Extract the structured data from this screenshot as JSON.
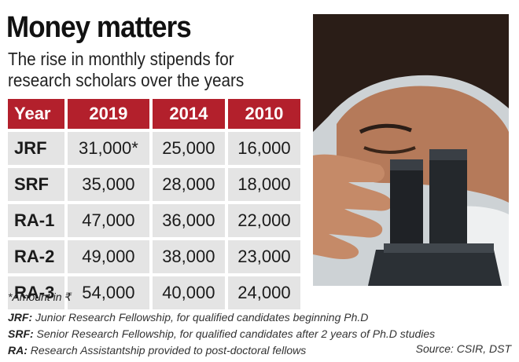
{
  "title": "Money matters",
  "subtitle": "The rise in monthly stipends for research scholars over the years",
  "chart_data": {
    "type": "table",
    "columns": [
      "Year",
      "2019",
      "2014",
      "2010"
    ],
    "rows": [
      {
        "label": "JRF",
        "values": [
          "31,000*",
          "25,000",
          "16,000"
        ]
      },
      {
        "label": "SRF",
        "values": [
          "35,000",
          "28,000",
          "18,000"
        ]
      },
      {
        "label": "RA-1",
        "values": [
          "47,000",
          "36,000",
          "22,000"
        ]
      },
      {
        "label": "RA-2",
        "values": [
          "49,000",
          "38,000",
          "23,000"
        ]
      },
      {
        "label": "RA-3",
        "values": [
          "54,000",
          "40,000",
          "24,000"
        ]
      }
    ]
  },
  "footnote": "*Amount in ₹",
  "notes": [
    {
      "abbr": "JRF:",
      "text": " Junior Research Fellowship, for qualified candidates beginning Ph.D"
    },
    {
      "abbr": "SRF:",
      "text": " Senior Research Fellowship, for qualified candidates after 2 years of Ph.D studies"
    },
    {
      "abbr": "RA:",
      "text": " Research Assistantship provided to post-doctoral fellows"
    }
  ],
  "source": "Source: CSIR, DST",
  "colors": {
    "header": "#b3202c",
    "cell": "#e4e4e4"
  },
  "image": {
    "subject": "woman-looking-into-microscope"
  }
}
